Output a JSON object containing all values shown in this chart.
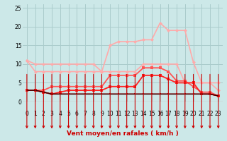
{
  "background_color": "#cce8e8",
  "grid_color": "#aacccc",
  "xlabel": "Vent moyen/en rafales ( km/h )",
  "xlim": [
    -0.5,
    23.5
  ],
  "ylim": [
    0,
    26
  ],
  "yticks": [
    0,
    5,
    10,
    15,
    20,
    25
  ],
  "xticks": [
    0,
    1,
    2,
    3,
    4,
    5,
    6,
    7,
    8,
    9,
    10,
    11,
    12,
    13,
    14,
    15,
    16,
    17,
    18,
    19,
    20,
    21,
    22,
    23
  ],
  "line1_x": [
    0,
    1,
    2,
    3,
    4,
    5,
    6,
    7,
    8,
    9,
    10,
    11,
    12,
    13,
    14,
    15,
    16,
    17,
    18,
    19,
    20,
    21,
    22,
    23
  ],
  "line1_y": [
    11,
    8,
    8,
    8,
    8,
    8,
    8,
    8,
    8,
    8,
    15,
    16,
    16,
    16,
    16.5,
    16.5,
    21,
    19,
    19,
    19,
    10.5,
    5,
    5,
    3
  ],
  "line1_color": "#ffaaaa",
  "line2_x": [
    0,
    1,
    2,
    3,
    4,
    5,
    6,
    7,
    8,
    9,
    10,
    11,
    12,
    13,
    14,
    15,
    16,
    17,
    18,
    19,
    20,
    21,
    22,
    23
  ],
  "line2_y": [
    11,
    10,
    10,
    10,
    10,
    10,
    10,
    10,
    10,
    8,
    8,
    8,
    8,
    8,
    10,
    10,
    10,
    10,
    10,
    5,
    5,
    5,
    5,
    5
  ],
  "line2_color": "#ffaaaa",
  "line3_x": [
    0,
    1,
    2,
    3,
    4,
    5,
    6,
    7,
    8,
    9,
    10,
    11,
    12,
    13,
    14,
    15,
    16,
    17,
    18,
    19,
    20,
    21,
    22,
    23
  ],
  "line3_y": [
    3,
    3,
    3,
    4,
    4,
    4,
    4,
    4,
    4,
    4,
    7,
    7,
    7,
    7,
    9,
    9,
    9,
    8,
    5.5,
    5.5,
    4,
    2.5,
    2.5,
    1.5
  ],
  "line3_color": "#ff5555",
  "line4_x": [
    0,
    1,
    2,
    3,
    4,
    5,
    6,
    7,
    8,
    9,
    10,
    11,
    12,
    13,
    14,
    15,
    16,
    17,
    18,
    19,
    20,
    21,
    22,
    23
  ],
  "line4_y": [
    3,
    3,
    2.5,
    2,
    2.5,
    3,
    3,
    3,
    3,
    3,
    4,
    4,
    4,
    4,
    7,
    7,
    7,
    6,
    5,
    5,
    5,
    2,
    2,
    1.5
  ],
  "line4_color": "#ff2222",
  "line5_x": [
    0,
    1,
    2,
    3,
    4,
    5,
    6,
    7,
    8,
    9,
    10,
    11,
    12,
    13,
    14,
    15,
    16,
    17,
    18,
    19,
    20,
    21,
    22,
    23
  ],
  "line5_y": [
    3,
    3,
    2.5,
    2,
    2,
    2,
    2,
    2,
    2,
    2,
    2,
    2,
    2,
    2,
    2,
    2,
    2,
    2,
    2,
    2,
    2,
    2,
    2,
    1.5
  ],
  "line5_color": "#cc0000",
  "line6_x": [
    0,
    1,
    2,
    3,
    4,
    5,
    6,
    7,
    8,
    9,
    10,
    11,
    12,
    13,
    14,
    15,
    16,
    17,
    18,
    19,
    20,
    21,
    22,
    23
  ],
  "line6_y": [
    3,
    3,
    2.5,
    2,
    2,
    2,
    2,
    2,
    2,
    2,
    2,
    2,
    2,
    2,
    2,
    2,
    2,
    2,
    2,
    2,
    2,
    2,
    2,
    1.5
  ],
  "line6_color": "#330000",
  "arrow_color": "#cc0000",
  "xlabel_color": "#cc0000",
  "xlabel_fontsize": 6.5,
  "tick_fontsize": 5.5
}
